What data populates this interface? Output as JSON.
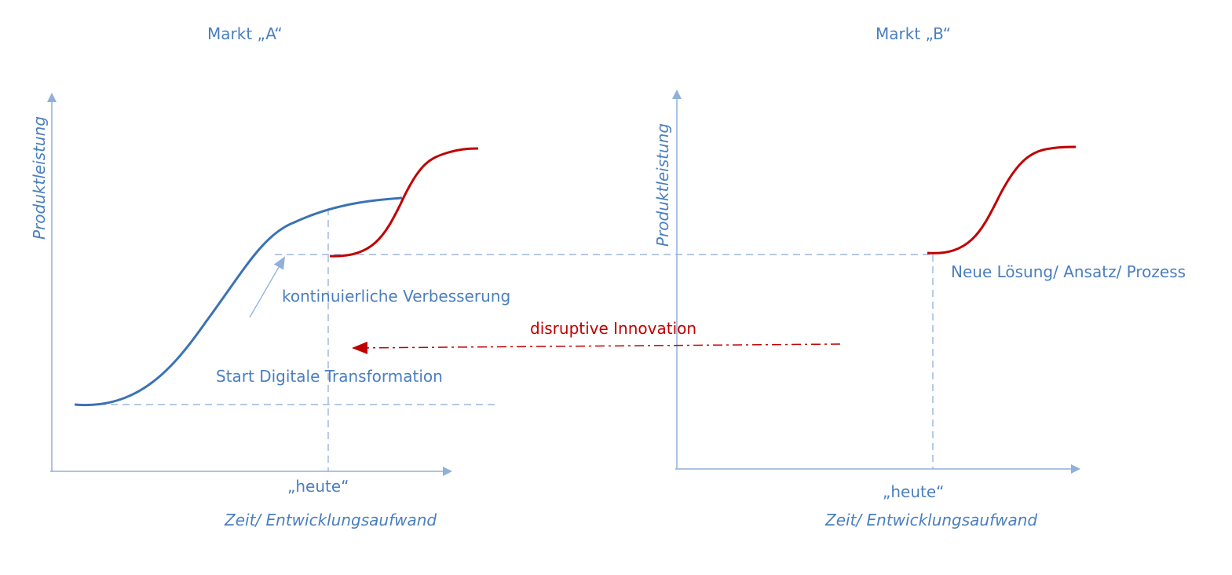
{
  "colors": {
    "axis": "#8fb0da",
    "guide": "#8aa9d4",
    "curve_blue": "#3a72b5",
    "curve_red": "#c00000",
    "text_blue": "#4a7fbf",
    "text_red": "#c00000"
  },
  "left_panel": {
    "title": "Markt „A“",
    "y_label": "Produktleistung",
    "x_tick": "„heute“",
    "x_label": "Zeit/ Entwicklungsaufwand",
    "annotation_improvement": "kontinuierliche Verbesserung",
    "annotation_start": "Start Digitale Transformation"
  },
  "right_panel": {
    "title": "Markt „B“",
    "y_label": "Produktleistung",
    "x_tick": "„heute“",
    "x_label": "Zeit/ Entwicklungsaufwand",
    "annotation_solution": "Neue Lösung/ Ansatz/ Prozess"
  },
  "disruption": {
    "label": "disruptive Innovation"
  }
}
